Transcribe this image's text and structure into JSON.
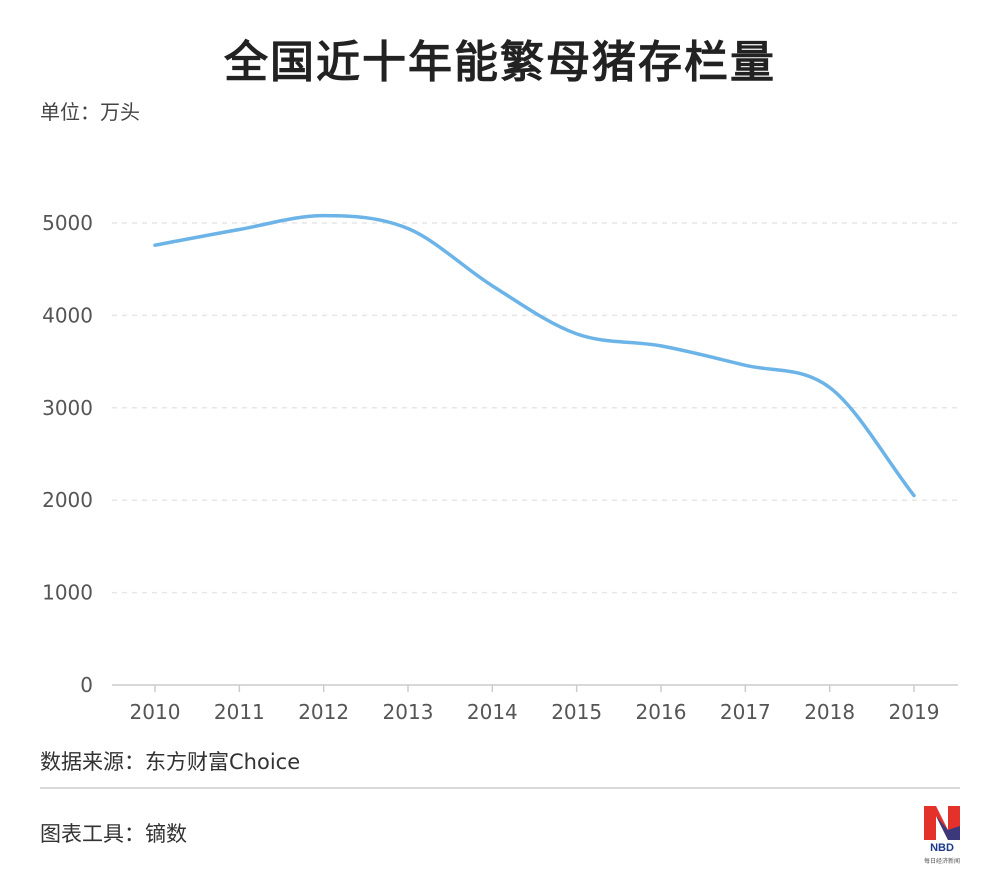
{
  "title": "全国近十年能繁母猪存栏量",
  "unit_label": "单位：万头",
  "source_label": "数据来源：东方财富Choice",
  "tool_label": "图表工具：镝数",
  "logo": {
    "text": "NBD",
    "subtext": "每日经济新闻"
  },
  "colors": {
    "line": "#6cb4e8",
    "grid": "#e6e6e6",
    "axis": "#cccccc",
    "tick_text": "#555555"
  },
  "chart_data": {
    "type": "line",
    "title": "全国近十年能繁母猪存栏量",
    "xlabel": "",
    "ylabel": "单位：万头",
    "x": [
      "2010",
      "2011",
      "2012",
      "2013",
      "2014",
      "2015",
      "2016",
      "2017",
      "2018",
      "2019"
    ],
    "series": [
      {
        "values": [
          4760,
          4930,
          5080,
          4940,
          4320,
          3800,
          3670,
          3460,
          3220,
          2050
        ]
      }
    ],
    "ylim": [
      0,
      5000
    ],
    "yticks": [
      0,
      1000,
      2000,
      3000,
      4000,
      5000
    ],
    "grid": true,
    "grid_style": "dashed-horizontal",
    "legend": "none"
  }
}
